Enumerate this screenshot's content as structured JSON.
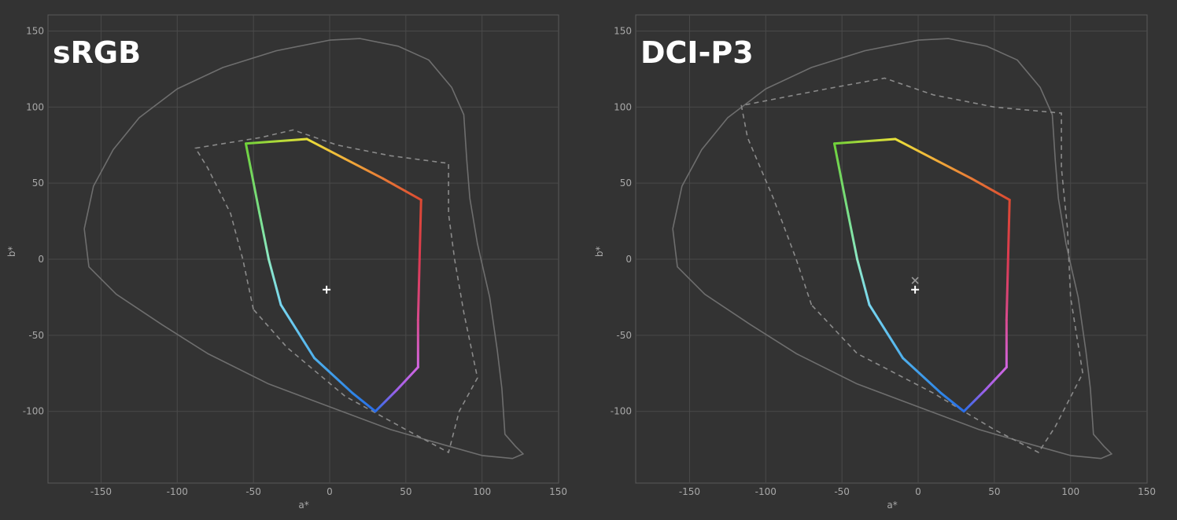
{
  "colors": {
    "background": "#333333",
    "grid": "#4a4a4a",
    "axis": "#5a5a5a",
    "tick_text": "#a8a8a8",
    "locus": "#6e6e6e",
    "reference": "#8a8a8a",
    "white": "#ffffff"
  },
  "chart_data": [
    {
      "type": "line",
      "title": "sRGB",
      "xlabel": "a*",
      "ylabel": "b*",
      "xlim": [
        -185,
        150
      ],
      "ylim": [
        -147,
        160
      ],
      "xticks": [
        -150,
        -100,
        -50,
        0,
        50,
        100,
        150
      ],
      "yticks": [
        150,
        100,
        50,
        0,
        -50,
        -100
      ],
      "grid": true,
      "gamut_hull": [
        {
          "a": 30,
          "b": -100,
          "color": "#2a6ee8"
        },
        {
          "a": 15,
          "b": -88,
          "color": "#2f86e6"
        },
        {
          "a": -10,
          "b": -65,
          "color": "#4fb0ec"
        },
        {
          "a": -32,
          "b": -30,
          "color": "#78d6f0"
        },
        {
          "a": -40,
          "b": 0,
          "color": "#8de9c4"
        },
        {
          "a": -46,
          "b": 30,
          "color": "#7ae08a"
        },
        {
          "a": -55,
          "b": 76,
          "color": "#6fd13a"
        },
        {
          "a": -15,
          "b": 79,
          "color": "#e8e03a"
        },
        {
          "a": 10,
          "b": 66,
          "color": "#f2b23a"
        },
        {
          "a": 35,
          "b": 53,
          "color": "#e87a36"
        },
        {
          "a": 60,
          "b": 39,
          "color": "#dc4a32"
        },
        {
          "a": 59,
          "b": 0,
          "color": "#dc3a52"
        },
        {
          "a": 58,
          "b": -40,
          "color": "#d84a8e"
        },
        {
          "a": 58,
          "b": -71,
          "color": "#d266e0"
        },
        {
          "a": 44,
          "b": -86,
          "color": "#a060e8"
        },
        {
          "a": 30,
          "b": -100,
          "color": "#2a6ee8"
        }
      ],
      "spectral_locus": [
        [
          -161,
          20
        ],
        [
          -155,
          48
        ],
        [
          -142,
          72
        ],
        [
          -125,
          93
        ],
        [
          -100,
          112
        ],
        [
          -70,
          126
        ],
        [
          -35,
          137
        ],
        [
          0,
          144
        ],
        [
          20,
          145
        ],
        [
          45,
          140
        ],
        [
          65,
          131
        ],
        [
          80,
          113
        ],
        [
          88,
          95
        ],
        [
          90,
          65
        ],
        [
          92,
          40
        ],
        [
          97,
          10
        ],
        [
          105,
          -25
        ],
        [
          110,
          -60
        ],
        [
          113,
          -85
        ],
        [
          115,
          -115
        ],
        [
          122,
          -123
        ],
        [
          127,
          -128
        ],
        [
          120,
          -131
        ],
        [
          100,
          -129
        ],
        [
          75,
          -122
        ],
        [
          40,
          -112
        ],
        [
          0,
          -97
        ],
        [
          -40,
          -82
        ],
        [
          -80,
          -62
        ],
        [
          -110,
          -43
        ],
        [
          -140,
          -23
        ],
        [
          -158,
          -5
        ],
        [
          -161,
          20
        ]
      ],
      "reference_dashed": [
        [
          -50,
          -33
        ],
        [
          -57,
          0
        ],
        [
          -65,
          30
        ],
        [
          -80,
          60
        ],
        [
          -88,
          73
        ],
        [
          -45,
          80
        ],
        [
          -24,
          85
        ],
        [
          5,
          75
        ],
        [
          40,
          68
        ],
        [
          78,
          63
        ],
        [
          78,
          30
        ],
        [
          82,
          0
        ],
        [
          88,
          -35
        ],
        [
          97,
          -78
        ],
        [
          85,
          -100
        ],
        [
          78,
          -127
        ],
        [
          50,
          -112
        ],
        [
          10,
          -90
        ],
        [
          -28,
          -58
        ],
        [
          -50,
          -33
        ]
      ],
      "white_points": [
        {
          "a": -2,
          "b": -20,
          "marker": "+"
        }
      ]
    },
    {
      "type": "line",
      "title": "DCI-P3",
      "xlabel": "a*",
      "ylabel": "b*",
      "xlim": [
        -185,
        150
      ],
      "ylim": [
        -147,
        160
      ],
      "xticks": [
        -150,
        -100,
        -50,
        0,
        50,
        100,
        150
      ],
      "yticks": [
        150,
        100,
        50,
        0,
        -50,
        -100
      ],
      "grid": true,
      "gamut_hull": [
        {
          "a": 30,
          "b": -100,
          "color": "#2a6ee8"
        },
        {
          "a": 15,
          "b": -88,
          "color": "#2f86e6"
        },
        {
          "a": -10,
          "b": -65,
          "color": "#4fb0ec"
        },
        {
          "a": -32,
          "b": -30,
          "color": "#78d6f0"
        },
        {
          "a": -40,
          "b": 0,
          "color": "#8de9c4"
        },
        {
          "a": -46,
          "b": 30,
          "color": "#7ae08a"
        },
        {
          "a": -55,
          "b": 76,
          "color": "#6fd13a"
        },
        {
          "a": -15,
          "b": 79,
          "color": "#e8e03a"
        },
        {
          "a": 10,
          "b": 66,
          "color": "#f2b23a"
        },
        {
          "a": 35,
          "b": 53,
          "color": "#e87a36"
        },
        {
          "a": 60,
          "b": 39,
          "color": "#dc4a32"
        },
        {
          "a": 59,
          "b": 0,
          "color": "#dc3a52"
        },
        {
          "a": 58,
          "b": -40,
          "color": "#d84a8e"
        },
        {
          "a": 58,
          "b": -71,
          "color": "#d266e0"
        },
        {
          "a": 44,
          "b": -86,
          "color": "#a060e8"
        },
        {
          "a": 30,
          "b": -100,
          "color": "#2a6ee8"
        }
      ],
      "spectral_locus": [
        [
          -161,
          20
        ],
        [
          -155,
          48
        ],
        [
          -142,
          72
        ],
        [
          -125,
          93
        ],
        [
          -100,
          112
        ],
        [
          -70,
          126
        ],
        [
          -35,
          137
        ],
        [
          0,
          144
        ],
        [
          20,
          145
        ],
        [
          45,
          140
        ],
        [
          65,
          131
        ],
        [
          80,
          113
        ],
        [
          88,
          95
        ],
        [
          90,
          65
        ],
        [
          92,
          40
        ],
        [
          97,
          10
        ],
        [
          105,
          -25
        ],
        [
          110,
          -60
        ],
        [
          113,
          -85
        ],
        [
          115,
          -115
        ],
        [
          122,
          -123
        ],
        [
          127,
          -128
        ],
        [
          120,
          -131
        ],
        [
          100,
          -129
        ],
        [
          75,
          -122
        ],
        [
          40,
          -112
        ],
        [
          0,
          -97
        ],
        [
          -40,
          -82
        ],
        [
          -80,
          -62
        ],
        [
          -110,
          -43
        ],
        [
          -140,
          -23
        ],
        [
          -158,
          -5
        ],
        [
          -161,
          20
        ]
      ],
      "reference_dashed": [
        [
          -70,
          -30
        ],
        [
          -80,
          0
        ],
        [
          -95,
          40
        ],
        [
          -112,
          80
        ],
        [
          -116,
          101
        ],
        [
          -60,
          112
        ],
        [
          -22,
          119
        ],
        [
          10,
          108
        ],
        [
          50,
          100
        ],
        [
          94,
          96
        ],
        [
          94,
          60
        ],
        [
          98,
          20
        ],
        [
          100,
          -25
        ],
        [
          108,
          -75
        ],
        [
          90,
          -110
        ],
        [
          79,
          -127
        ],
        [
          50,
          -112
        ],
        [
          10,
          -88
        ],
        [
          -40,
          -62
        ],
        [
          -70,
          -30
        ]
      ],
      "white_points": [
        {
          "a": -2,
          "b": -14,
          "marker": "x"
        },
        {
          "a": -2,
          "b": -20,
          "marker": "+"
        }
      ]
    }
  ]
}
